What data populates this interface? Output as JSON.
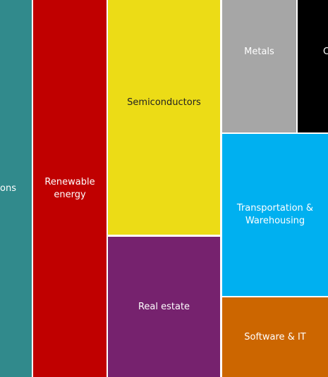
{
  "tiles": [
    {
      "label": "ons",
      "color": "#318a8c",
      "text_color": "#ffffff"
    },
    {
      "label": "Renewable energy",
      "color": "#c00000",
      "text_color": "#ffffff"
    },
    {
      "label": "Semiconductors",
      "color": "#ecdc16",
      "text_color": "#222222"
    },
    {
      "label": "Real estate",
      "color": "#76226e",
      "text_color": "#ffffff"
    },
    {
      "label": "Metals",
      "color": "#a6a6a6",
      "text_color": "#ffffff"
    },
    {
      "label": "C",
      "color": "#000000",
      "text_color": "#ffffff"
    },
    {
      "label": "Transportation & Warehousing",
      "color": "#00b0f0",
      "text_color": "#ffffff"
    },
    {
      "label": "Software & IT",
      "color": "#cc6600",
      "text_color": "#ffffff"
    }
  ]
}
